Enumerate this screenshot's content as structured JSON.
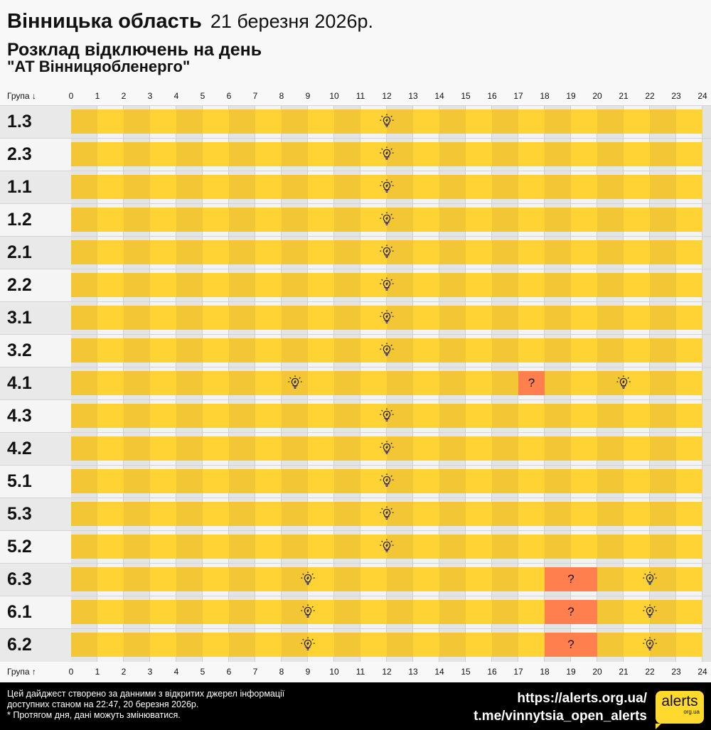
{
  "header": {
    "region": "Вінницька область",
    "date": "21 березня 2026р.",
    "subtitle": "Розклад відключень на день",
    "company": "\"АТ Вінницяобленерго\""
  },
  "axis": {
    "top_label": "Група ↓",
    "bottom_label": "Група ↑",
    "hours": [
      "0",
      "1",
      "2",
      "3",
      "4",
      "5",
      "6",
      "7",
      "8",
      "9",
      "10",
      "11",
      "12",
      "13",
      "14",
      "15",
      "16",
      "17",
      "18",
      "19",
      "20",
      "21",
      "22",
      "23",
      "24"
    ]
  },
  "colors": {
    "power_on": "#ffd333",
    "power_on_alt": "#f3c636",
    "possible_outage": "#ff7f4e",
    "row_bg": "#ebebeb",
    "row_bg_alt": "#f5f5f5"
  },
  "groups": [
    {
      "name": "1.3",
      "outages": [],
      "markers": [
        {
          "icon": "lightbulb-icon",
          "hour": 12
        }
      ]
    },
    {
      "name": "2.3",
      "outages": [],
      "markers": [
        {
          "icon": "lightbulb-icon",
          "hour": 12
        }
      ]
    },
    {
      "name": "1.1",
      "outages": [],
      "markers": [
        {
          "icon": "lightbulb-icon",
          "hour": 12
        }
      ]
    },
    {
      "name": "1.2",
      "outages": [],
      "markers": [
        {
          "icon": "lightbulb-icon",
          "hour": 12
        }
      ]
    },
    {
      "name": "2.1",
      "outages": [],
      "markers": [
        {
          "icon": "lightbulb-icon",
          "hour": 12
        }
      ]
    },
    {
      "name": "2.2",
      "outages": [],
      "markers": [
        {
          "icon": "lightbulb-icon",
          "hour": 12
        }
      ]
    },
    {
      "name": "3.1",
      "outages": [],
      "markers": [
        {
          "icon": "lightbulb-icon",
          "hour": 12
        }
      ]
    },
    {
      "name": "3.2",
      "outages": [],
      "markers": [
        {
          "icon": "lightbulb-icon",
          "hour": 12
        }
      ]
    },
    {
      "name": "4.1",
      "outages": [
        {
          "start": 17,
          "end": 18
        }
      ],
      "markers": [
        {
          "icon": "lightbulb-icon",
          "hour": 8.5
        },
        {
          "icon": "question-icon",
          "hour": 17.5,
          "text": "?"
        },
        {
          "icon": "lightbulb-icon",
          "hour": 21
        }
      ]
    },
    {
      "name": "4.3",
      "outages": [],
      "markers": [
        {
          "icon": "lightbulb-icon",
          "hour": 12
        }
      ]
    },
    {
      "name": "4.2",
      "outages": [],
      "markers": [
        {
          "icon": "lightbulb-icon",
          "hour": 12
        }
      ]
    },
    {
      "name": "5.1",
      "outages": [],
      "markers": [
        {
          "icon": "lightbulb-icon",
          "hour": 12
        }
      ]
    },
    {
      "name": "5.3",
      "outages": [],
      "markers": [
        {
          "icon": "lightbulb-icon",
          "hour": 12
        }
      ]
    },
    {
      "name": "5.2",
      "outages": [],
      "markers": [
        {
          "icon": "lightbulb-icon",
          "hour": 12
        }
      ]
    },
    {
      "name": "6.3",
      "outages": [
        {
          "start": 18,
          "end": 20
        }
      ],
      "markers": [
        {
          "icon": "lightbulb-icon",
          "hour": 9
        },
        {
          "icon": "question-icon",
          "hour": 19,
          "text": "?"
        },
        {
          "icon": "lightbulb-icon",
          "hour": 22
        }
      ]
    },
    {
      "name": "6.1",
      "outages": [
        {
          "start": 18,
          "end": 20
        }
      ],
      "markers": [
        {
          "icon": "lightbulb-icon",
          "hour": 9
        },
        {
          "icon": "question-icon",
          "hour": 19,
          "text": "?"
        },
        {
          "icon": "lightbulb-icon",
          "hour": 22
        }
      ]
    },
    {
      "name": "6.2",
      "outages": [
        {
          "start": 18,
          "end": 20
        }
      ],
      "markers": [
        {
          "icon": "lightbulb-icon",
          "hour": 9
        },
        {
          "icon": "question-icon",
          "hour": 19,
          "text": "?"
        },
        {
          "icon": "lightbulb-icon",
          "hour": 22
        }
      ]
    }
  ],
  "footer": {
    "note_line1": "Цей дайджест створено за данними з відкритих джерел інформації",
    "note_line2": "доступних станом на 22:47, 20 березня 2026р.",
    "note_line3": "* Протягом дня, дані можуть змінюватися.",
    "link_site": "https://alerts.org.ua/",
    "link_telegram": "t.me/vinnytsia_open_alerts",
    "logo_text": "alerts",
    "logo_sub": "org.ua"
  }
}
